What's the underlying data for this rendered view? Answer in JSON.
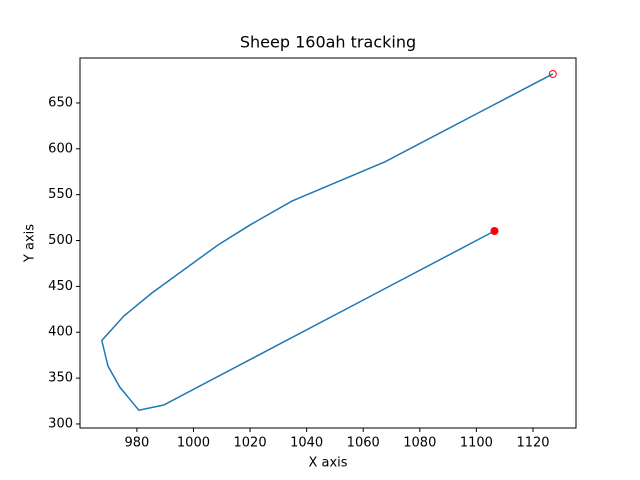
{
  "chart_data": {
    "type": "line",
    "title": "Sheep 160ah tracking",
    "x_label": "X axis",
    "y_label": "Y axis",
    "x": [
      1106.4,
      989.5,
      980.7,
      974,
      969.8,
      967.6,
      975.4,
      985.3,
      1008.6,
      1020,
      1034.8,
      1067.6,
      1101.2,
      1127
    ],
    "series": [
      {
        "color": "#1f77b4",
        "values": [
          510.4,
          320.7,
          315,
          340,
          363,
          391,
          417.7,
          442.8,
          495,
          517,
          543,
          585.7,
          640,
          681.6
        ]
      }
    ],
    "marker_color": "#ff0000",
    "xlim": [
      959.9,
      1135.2
    ],
    "xticks": [
      980,
      1000,
      1020,
      1040,
      1060,
      1080,
      1100,
      1120
    ],
    "ylim": [
      295.6,
      699
    ],
    "yticks": [
      300,
      350,
      400,
      450,
      500,
      550,
      600,
      650
    ]
  }
}
